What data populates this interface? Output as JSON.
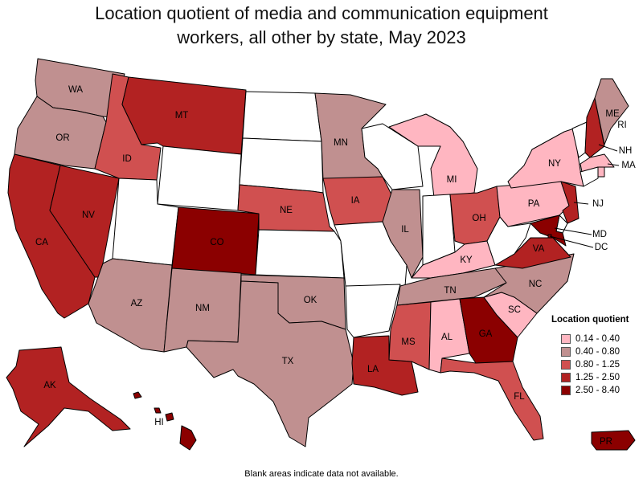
{
  "title": "Location quotient of media and communication equipment workers, all other by state, May 2023",
  "title_lines": [
    "Location quotient of media and communication equipment",
    "workers, all other by state, May 2023"
  ],
  "legend": {
    "title": "Location quotient",
    "items": [
      {
        "label": "0.14 - 0.40",
        "color": "#ffb6c1"
      },
      {
        "label": "0.40 - 0.80",
        "color": "#c09090"
      },
      {
        "label": "0.80 - 1.25",
        "color": "#d05050"
      },
      {
        "label": "1.25 - 2.50",
        "color": "#b22222"
      },
      {
        "label": "2.50 - 8.40",
        "color": "#8b0000"
      }
    ]
  },
  "footnote": "Blank areas indicate data not available.",
  "colors": {
    "blank": "#ffffff",
    "c1": "#ffb6c1",
    "c2": "#c09090",
    "c3": "#d05050",
    "c4": "#b22222",
    "c5": "#8b0000"
  },
  "states": {
    "WA": {
      "label": "WA",
      "class": 2
    },
    "OR": {
      "label": "OR",
      "class": 2
    },
    "CA": {
      "label": "CA",
      "class": 4
    },
    "NV": {
      "label": "NV",
      "class": 4
    },
    "ID": {
      "label": "ID",
      "class": 3
    },
    "MT": {
      "label": "MT",
      "class": 4
    },
    "WY": {
      "label": "",
      "class": 0
    },
    "UT": {
      "label": "",
      "class": 0
    },
    "AZ": {
      "label": "AZ",
      "class": 2
    },
    "CO": {
      "label": "CO",
      "class": 5
    },
    "NM": {
      "label": "NM",
      "class": 2
    },
    "ND": {
      "label": "",
      "class": 0
    },
    "SD": {
      "label": "",
      "class": 0
    },
    "NE": {
      "label": "NE",
      "class": 3
    },
    "KS": {
      "label": "",
      "class": 0
    },
    "OK": {
      "label": "OK",
      "class": 2
    },
    "TX": {
      "label": "TX",
      "class": 2
    },
    "MN": {
      "label": "MN",
      "class": 2
    },
    "IA": {
      "label": "IA",
      "class": 3
    },
    "MO": {
      "label": "",
      "class": 0
    },
    "AR": {
      "label": "",
      "class": 0
    },
    "LA": {
      "label": "LA",
      "class": 4
    },
    "WI": {
      "label": "",
      "class": 0
    },
    "IL": {
      "label": "IL",
      "class": 2
    },
    "MI": {
      "label": "MI",
      "class": 1
    },
    "IN": {
      "label": "",
      "class": 0
    },
    "OH": {
      "label": "OH",
      "class": 3
    },
    "KY": {
      "label": "KY",
      "class": 1
    },
    "TN": {
      "label": "TN",
      "class": 2
    },
    "MS": {
      "label": "MS",
      "class": 3
    },
    "AL": {
      "label": "AL",
      "class": 1
    },
    "GA": {
      "label": "GA",
      "class": 5
    },
    "FL": {
      "label": "FL",
      "class": 3
    },
    "SC": {
      "label": "SC",
      "class": 1
    },
    "NC": {
      "label": "NC",
      "class": 2
    },
    "VA": {
      "label": "VA",
      "class": 4
    },
    "WV": {
      "label": "",
      "class": 0
    },
    "PA": {
      "label": "PA",
      "class": 1
    },
    "NY": {
      "label": "NY",
      "class": 1
    },
    "VT": {
      "label": "",
      "class": 0
    },
    "NH": {
      "label": "NH",
      "class": 4
    },
    "ME": {
      "label": "ME",
      "class": 2
    },
    "MA": {
      "label": "MA",
      "class": 1
    },
    "RI": {
      "label": "RI",
      "class": 1
    },
    "CT": {
      "label": "",
      "class": 0
    },
    "NJ": {
      "label": "NJ",
      "class": 4
    },
    "DE": {
      "label": "",
      "class": 0
    },
    "MD": {
      "label": "MD",
      "class": 5
    },
    "DC": {
      "label": "DC",
      "class": 5
    },
    "AK": {
      "label": "AK",
      "class": 4
    },
    "HI": {
      "label": "HI",
      "class": 5
    },
    "PR": {
      "label": "PR",
      "class": 5
    }
  }
}
